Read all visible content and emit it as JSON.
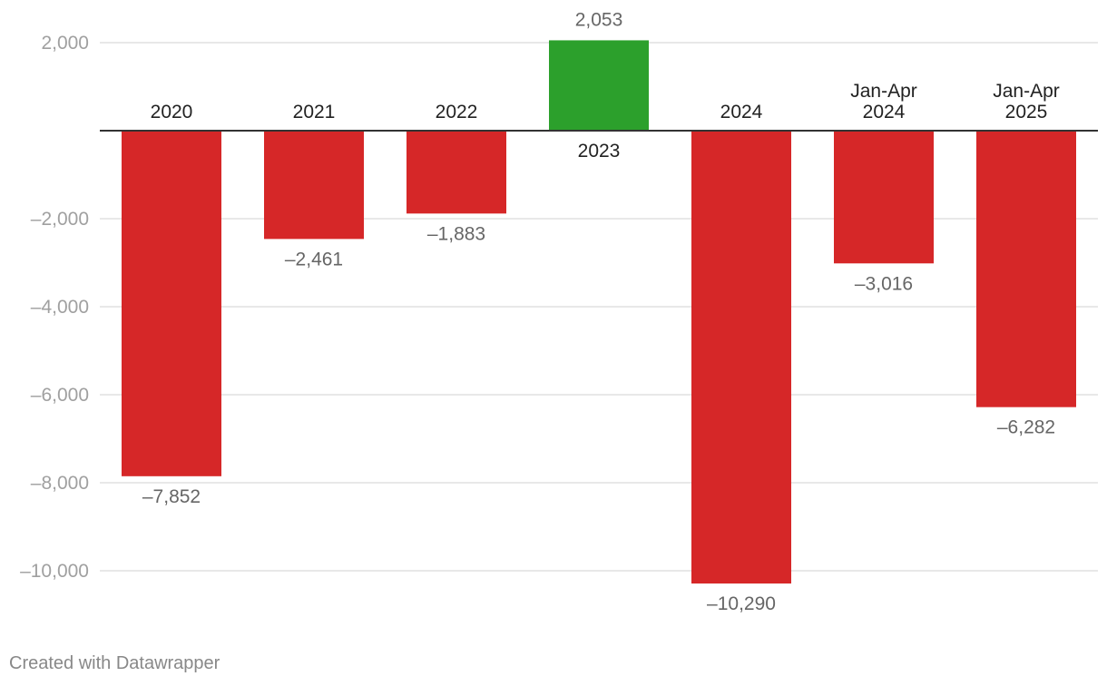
{
  "chart_data": {
    "type": "bar",
    "title": "",
    "xlabel": "",
    "ylabel": "",
    "categories": [
      [
        "2020"
      ],
      [
        "2021"
      ],
      [
        "2022"
      ],
      [
        "2023"
      ],
      [
        "2024"
      ],
      [
        "Jan-Apr",
        "2024"
      ],
      [
        "Jan-Apr",
        "2025"
      ]
    ],
    "values": [
      -7852,
      -2461,
      -1883,
      2053,
      -10290,
      -3016,
      -6282
    ],
    "value_labels": [
      "–7,852",
      "–2,461",
      "–1,883",
      "2,053",
      "–10,290",
      "–3,016",
      "–6,282"
    ],
    "ylim": [
      -10500,
      2200
    ],
    "yticks": [
      2000,
      -2000,
      -4000,
      -6000,
      -8000,
      -10000
    ],
    "ytick_labels": [
      "2,000",
      "–2,000",
      "–4,000",
      "–6,000",
      "–8,000",
      "–10,000"
    ],
    "grid": true,
    "colors": {
      "negative": "#d62728",
      "positive": "#2ca02c",
      "grid": "#e0e0e0",
      "axis": "#333333",
      "tick_label": "#a0a0a0",
      "value_label": "#666666",
      "category_label": "#222222"
    }
  },
  "footer": {
    "credit": "Created with Datawrapper"
  }
}
